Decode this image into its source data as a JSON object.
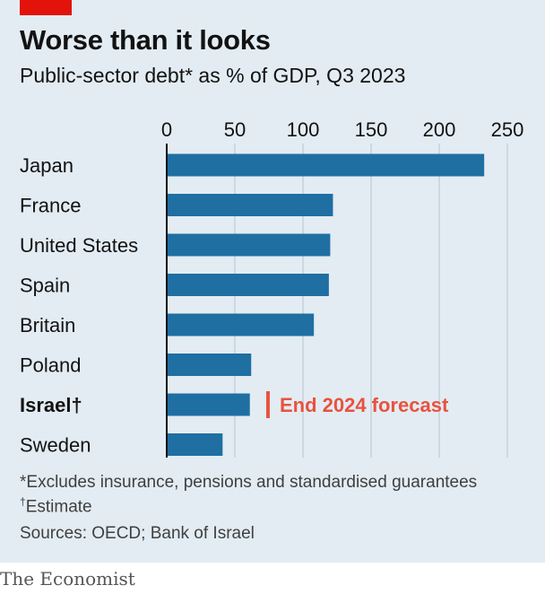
{
  "header": {
    "title": "Worse than it looks",
    "subtitle": "Public-sector debt* as % of GDP, Q3 2023"
  },
  "chart_data": {
    "type": "bar",
    "orientation": "horizontal",
    "title": "Worse than it looks",
    "subtitle": "Public-sector debt* as % of GDP, Q3 2023",
    "categories": [
      "Japan",
      "France",
      "United States",
      "Spain",
      "Britain",
      "Poland",
      "Israel†",
      "Sweden"
    ],
    "values": [
      233,
      122,
      120,
      119,
      108,
      62,
      61,
      41
    ],
    "xlim": [
      0,
      250
    ],
    "xticks": [
      "0",
      "50",
      "100",
      "150",
      "200",
      "250"
    ],
    "highlight_category": "Israel†",
    "annotation": {
      "label": "End 2024 forecast",
      "category": "Israel†",
      "value": 73
    },
    "grid": true,
    "xaxis_position": "top",
    "bar_color": "#1f6fa3",
    "annotation_color": "#e8533f"
  },
  "footnotes": {
    "note1": "*Excludes insurance, pensions and standardised guarantees",
    "note2_mark": "†",
    "note2": "Estimate",
    "sources": "Sources: OECD; Bank of Israel"
  },
  "brand": "The Economist",
  "colors": {
    "background": "#e3ecf3",
    "accent_red": "#e3120b",
    "bar": "#1f6fa3",
    "annotation": "#e8533f"
  }
}
